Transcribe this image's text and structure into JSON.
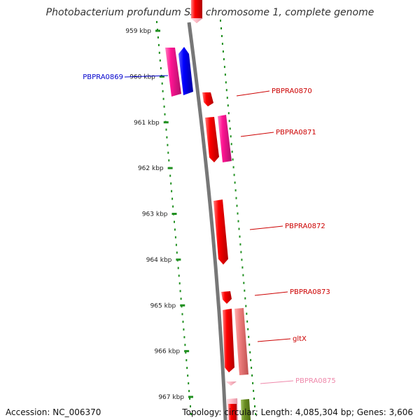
{
  "title": "Photobacterium profundum SS9 chromosome 1, complete genome",
  "footer": {
    "accession_label": "Accession:",
    "accession": "NC_006370",
    "topology_label": "Topology:",
    "topology": "circular",
    "length_label": "Length:",
    "length": "4,085,304 bp",
    "genes_label": "Genes:",
    "genes": "3,606"
  },
  "ruler": {
    "ticks": [
      "959 kbp",
      "960 kbp",
      "961 kbp",
      "962 kbp",
      "963 kbp",
      "964 kbp",
      "965 kbp",
      "966 kbp",
      "967 kbp"
    ]
  },
  "genes": [
    {
      "label": "PBPRA0869",
      "color": "#0000cc",
      "side": "left"
    },
    {
      "label": "PBPRA0870",
      "color": "#cc0000",
      "side": "right"
    },
    {
      "label": "PBPRA0871",
      "color": "#cc0000",
      "side": "right"
    },
    {
      "label": "PBPRA0872",
      "color": "#cc0000",
      "side": "right"
    },
    {
      "label": "PBPRA0873",
      "color": "#cc0000",
      "side": "right"
    },
    {
      "label": "gltX",
      "color": "#cc0000",
      "side": "right"
    },
    {
      "label": "PBPRA0875",
      "color": "#ee88aa",
      "side": "right"
    }
  ],
  "colors": {
    "backbone": "#777777",
    "ruler_dots": "#1f8f1f",
    "gene_red": "#ff0000",
    "gene_blue": "#0000ff",
    "gene_magenta": "#ff1493",
    "gene_salmon": "#f08080",
    "gene_pink": "#ffc0cb",
    "gene_green": "#6b8e23"
  }
}
